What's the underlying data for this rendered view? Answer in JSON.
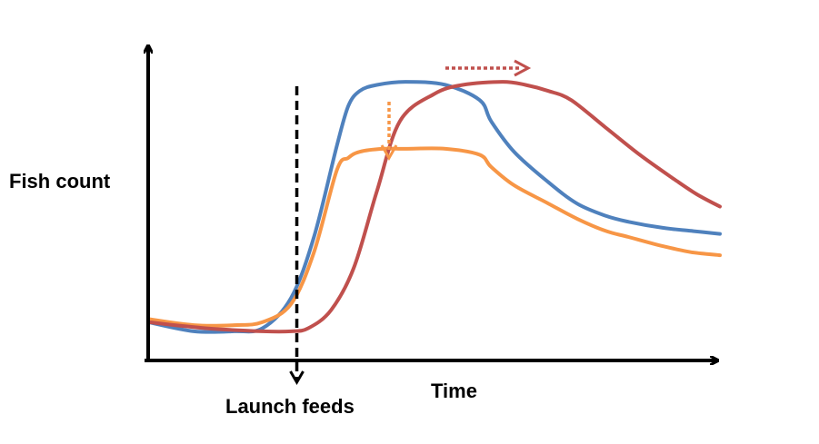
{
  "chart_data": {
    "type": "line",
    "title": "",
    "xlabel": "Time",
    "ylabel": "Fish count",
    "grid": false,
    "legend": "none",
    "xlim": [
      0,
      100
    ],
    "ylim": [
      0,
      100
    ],
    "annotations": [
      {
        "text": "Launch feeds",
        "x": 26
      }
    ],
    "series": [
      {
        "color": "#4F81BD",
        "x": [
          0,
          8,
          15,
          20,
          25,
          29,
          33,
          35,
          37,
          40,
          45,
          52,
          58,
          60,
          64,
          70,
          75,
          80,
          84,
          90,
          95,
          100
        ],
        "y": [
          12,
          9,
          9,
          10,
          20,
          40,
          70,
          83,
          88,
          90,
          91,
          90,
          85,
          78,
          68,
          58,
          51,
          47,
          45,
          43,
          42,
          41
        ]
      },
      {
        "color": "#F79646",
        "x": [
          0,
          8,
          15,
          20,
          25,
          29,
          33,
          35,
          37,
          41,
          45,
          52,
          58,
          60,
          64,
          70,
          75,
          80,
          84,
          90,
          95,
          100
        ],
        "y": [
          13,
          11,
          11,
          12,
          18,
          35,
          62,
          66,
          68,
          69,
          69,
          69,
          67,
          63,
          57,
          51,
          46,
          42,
          40,
          37,
          35,
          34
        ]
      },
      {
        "color": "#C0504D",
        "x": [
          0,
          10,
          20,
          25,
          28,
          32,
          36,
          40,
          44,
          50,
          55,
          62,
          66,
          70,
          74,
          80,
          86,
          92,
          96,
          100
        ],
        "y": [
          12,
          10,
          9,
          9,
          10,
          16,
          30,
          55,
          78,
          87,
          90,
          91,
          90,
          88,
          85,
          76,
          67,
          59,
          54,
          50
        ]
      }
    ]
  }
}
